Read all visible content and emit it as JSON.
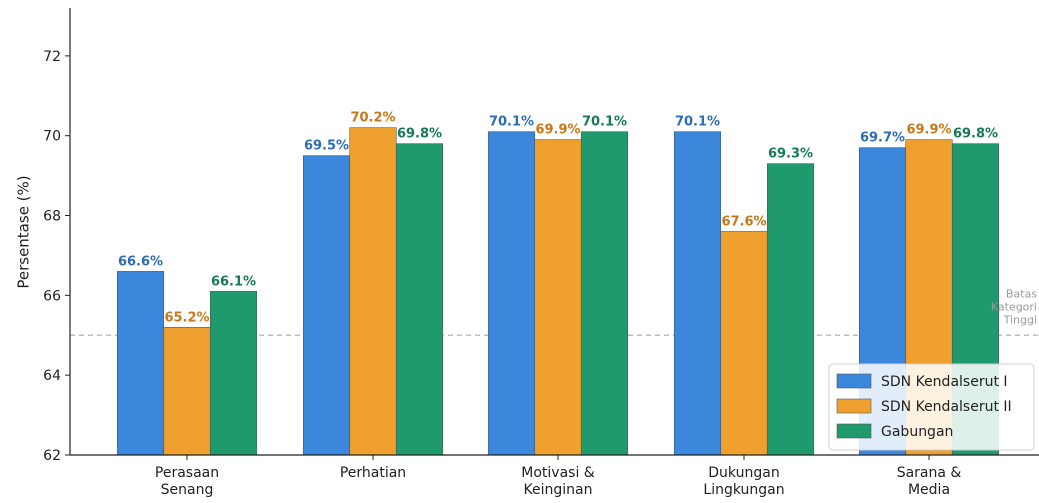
{
  "chart_data": {
    "type": "bar",
    "title": "",
    "xlabel": "",
    "ylabel": "Persentase (%)",
    "ylim": [
      62,
      73.4
    ],
    "yticks": [
      62,
      64,
      66,
      68,
      70,
      72
    ],
    "grid": false,
    "categories": [
      [
        "Perasaan",
        "Senang"
      ],
      [
        "Perhatian"
      ],
      [
        "Motivasi &",
        "Keinginan"
      ],
      [
        "Dukungan",
        "Lingkungan"
      ],
      [
        "Sarana &",
        "Media"
      ]
    ],
    "series": [
      {
        "name": "SDN Kendalserut I",
        "color": "#3a87dc",
        "label_color": "#2e6db4",
        "values": [
          66.6,
          69.5,
          70.1,
          70.1,
          69.7
        ],
        "labels": [
          "66.6%",
          "69.5%",
          "70.1%",
          "70.1%",
          "69.7%"
        ]
      },
      {
        "name": "SDN Kendalserut II",
        "color": "#f0a02e",
        "label_color": "#c8781a",
        "values": [
          65.2,
          70.2,
          69.9,
          67.6,
          69.9
        ],
        "labels": [
          "65.2%",
          "70.2%",
          "69.9%",
          "67.6%",
          "69.9%"
        ]
      },
      {
        "name": "Gabungan",
        "color": "#1f9a6c",
        "label_color": "#177a55",
        "values": [
          66.1,
          69.8,
          70.1,
          69.3,
          69.8
        ],
        "labels": [
          "66.1%",
          "69.8%",
          "70.1%",
          "69.3%",
          "69.8%"
        ]
      }
    ],
    "reference_line": {
      "value": 65,
      "label": [
        "Batas",
        "Kategori",
        "Tinggi"
      ],
      "color": "#b0b0b0"
    },
    "legend_position": "bottom-right"
  }
}
